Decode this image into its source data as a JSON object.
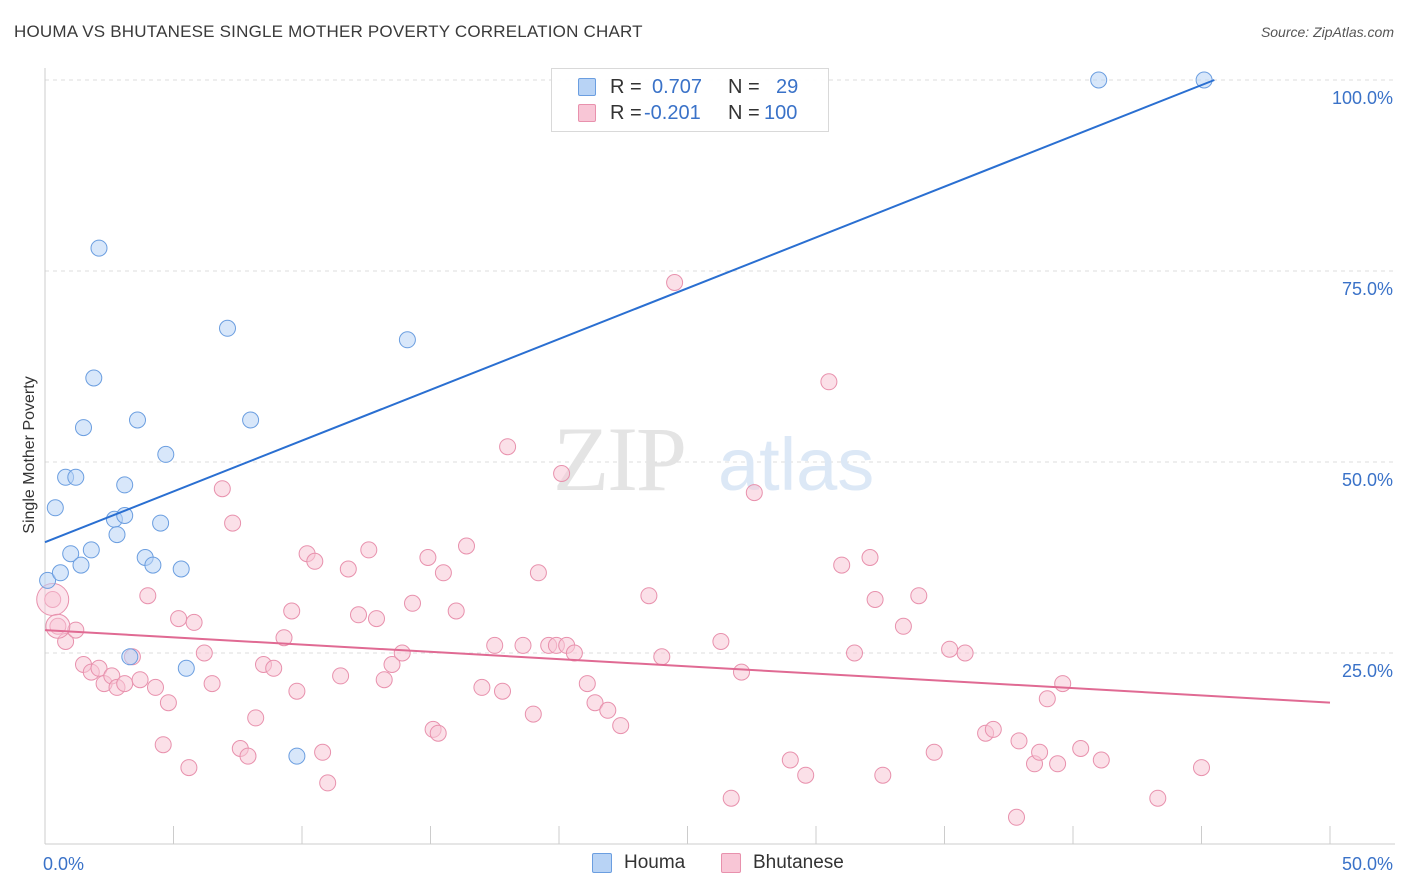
{
  "title": "HOUMA VS BHUTANESE SINGLE MOTHER POVERTY CORRELATION CHART",
  "source": "Source: ZipAtlas.com",
  "watermark": {
    "zip": "ZIP",
    "atlas": "atlas"
  },
  "legend": {
    "rows": [
      {
        "r_label": "R =",
        "r_value": "0.707",
        "n_label": "N =",
        "n_value": "29"
      },
      {
        "r_label": "R =",
        "r_value": "-0.201",
        "n_label": "N =",
        "n_value": "100"
      }
    ]
  },
  "bottom_legend": {
    "houma": "Houma",
    "bhutanese": "Bhutanese"
  },
  "colors": {
    "houma_fill": "#b8d3f5",
    "houma_stroke": "#6b9ee0",
    "houma_line": "#2a6fd1",
    "bhutanese_fill": "#f8c6d6",
    "bhutanese_stroke": "#e891ad",
    "bhutanese_line": "#e06a93",
    "tick_text": "#3a72c8",
    "grid": "#dddddd"
  },
  "chart_data": {
    "type": "scatter",
    "ylabel": "Single Mother Poverty",
    "xlabel": "",
    "xlim": [
      0,
      50
    ],
    "ylim": [
      0,
      100
    ],
    "x_tick_labels": [
      "0.0%",
      "50.0%"
    ],
    "y_ticks": [
      25,
      50,
      75,
      100
    ],
    "y_tick_labels": [
      "25.0%",
      "50.0%",
      "75.0%",
      "100.0%"
    ],
    "grid": true,
    "series": [
      {
        "name": "Houma",
        "points": [
          [
            0.1,
            34.5
          ],
          [
            0.4,
            44
          ],
          [
            0.6,
            35.5
          ],
          [
            0.8,
            48
          ],
          [
            1.0,
            38
          ],
          [
            1.2,
            48
          ],
          [
            1.4,
            36.5
          ],
          [
            1.5,
            54.5
          ],
          [
            1.8,
            38.5
          ],
          [
            1.9,
            61
          ],
          [
            2.1,
            78
          ],
          [
            2.7,
            42.5
          ],
          [
            2.8,
            40.5
          ],
          [
            3.1,
            43
          ],
          [
            3.1,
            47
          ],
          [
            3.3,
            24.5
          ],
          [
            3.6,
            55.5
          ],
          [
            3.9,
            37.5
          ],
          [
            4.2,
            36.5
          ],
          [
            4.5,
            42
          ],
          [
            4.7,
            51
          ],
          [
            5.3,
            36
          ],
          [
            5.5,
            23
          ],
          [
            7.1,
            67.5
          ],
          [
            8.0,
            55.5
          ],
          [
            9.8,
            11.5
          ],
          [
            14.1,
            66
          ],
          [
            41.0,
            100
          ],
          [
            45.1,
            100
          ]
        ],
        "trend": {
          "x": [
            0,
            45.5
          ],
          "y": [
            39.5,
            100
          ]
        }
      },
      {
        "name": "Bhutanese",
        "points": [
          [
            0.3,
            32
          ],
          [
            0.5,
            28.5
          ],
          [
            0.8,
            26.5
          ],
          [
            1.2,
            28
          ],
          [
            1.5,
            23.5
          ],
          [
            1.8,
            22.5
          ],
          [
            2.1,
            23
          ],
          [
            2.3,
            21
          ],
          [
            2.6,
            22
          ],
          [
            2.8,
            20.5
          ],
          [
            3.1,
            21
          ],
          [
            3.4,
            24.5
          ],
          [
            3.7,
            21.5
          ],
          [
            4.0,
            32.5
          ],
          [
            4.3,
            20.5
          ],
          [
            4.6,
            13
          ],
          [
            4.8,
            18.5
          ],
          [
            5.2,
            29.5
          ],
          [
            5.6,
            10
          ],
          [
            5.8,
            29
          ],
          [
            6.2,
            25
          ],
          [
            6.5,
            21
          ],
          [
            6.9,
            46.5
          ],
          [
            7.3,
            42
          ],
          [
            7.6,
            12.5
          ],
          [
            7.9,
            11.5
          ],
          [
            8.2,
            16.5
          ],
          [
            8.5,
            23.5
          ],
          [
            8.9,
            23
          ],
          [
            9.3,
            27
          ],
          [
            9.6,
            30.5
          ],
          [
            9.8,
            20
          ],
          [
            10.2,
            38
          ],
          [
            10.5,
            37
          ],
          [
            10.8,
            12
          ],
          [
            11.0,
            8
          ],
          [
            11.5,
            22
          ],
          [
            11.8,
            36
          ],
          [
            12.2,
            30
          ],
          [
            12.6,
            38.5
          ],
          [
            12.9,
            29.5
          ],
          [
            13.2,
            21.5
          ],
          [
            13.5,
            23.5
          ],
          [
            13.9,
            25
          ],
          [
            14.3,
            31.5
          ],
          [
            14.9,
            37.5
          ],
          [
            15.1,
            15
          ],
          [
            15.3,
            14.5
          ],
          [
            15.5,
            35.5
          ],
          [
            16.0,
            30.5
          ],
          [
            16.4,
            39
          ],
          [
            17.0,
            20.5
          ],
          [
            17.5,
            26
          ],
          [
            17.8,
            20
          ],
          [
            18.0,
            52
          ],
          [
            18.6,
            26
          ],
          [
            19.0,
            17
          ],
          [
            19.2,
            35.5
          ],
          [
            19.6,
            26
          ],
          [
            19.9,
            26
          ],
          [
            20.1,
            48.5
          ],
          [
            20.3,
            26
          ],
          [
            20.6,
            25
          ],
          [
            21.1,
            21
          ],
          [
            21.4,
            18.5
          ],
          [
            21.9,
            17.5
          ],
          [
            22.4,
            15.5
          ],
          [
            23.5,
            32.5
          ],
          [
            24.0,
            24.5
          ],
          [
            24.5,
            73.5
          ],
          [
            26.3,
            26.5
          ],
          [
            26.7,
            6
          ],
          [
            27.1,
            22.5
          ],
          [
            27.6,
            46
          ],
          [
            29.0,
            11
          ],
          [
            29.6,
            9
          ],
          [
            30.5,
            60.5
          ],
          [
            31.0,
            36.5
          ],
          [
            31.5,
            25
          ],
          [
            32.1,
            37.5
          ],
          [
            32.3,
            32
          ],
          [
            32.6,
            9
          ],
          [
            33.4,
            28.5
          ],
          [
            34.0,
            32.5
          ],
          [
            34.6,
            12
          ],
          [
            35.2,
            25.5
          ],
          [
            35.8,
            25
          ],
          [
            36.6,
            14.5
          ],
          [
            36.9,
            15
          ],
          [
            37.8,
            3.5
          ],
          [
            37.9,
            13.5
          ],
          [
            38.5,
            10.5
          ],
          [
            38.7,
            12
          ],
          [
            39.0,
            19
          ],
          [
            39.4,
            10.5
          ],
          [
            39.6,
            21
          ],
          [
            40.3,
            12.5
          ],
          [
            41.1,
            11
          ],
          [
            43.3,
            6
          ],
          [
            45.0,
            10
          ]
        ],
        "trend": {
          "x": [
            0,
            50
          ],
          "y": [
            28,
            18.5
          ]
        }
      }
    ]
  }
}
